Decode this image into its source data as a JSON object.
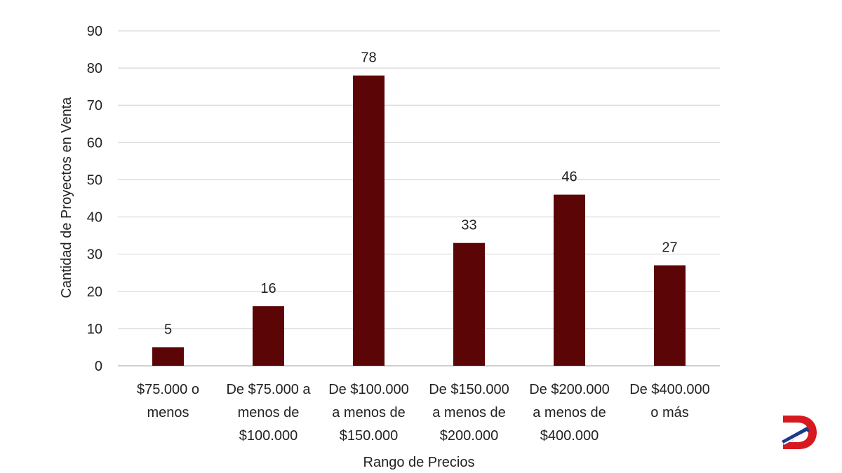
{
  "chart_data": {
    "type": "bar",
    "title": "",
    "xlabel": "Rango de Precios",
    "ylabel": "Cantidad de Proyectos en Venta",
    "ylim": [
      0,
      90
    ],
    "yticks": [
      0,
      10,
      20,
      30,
      40,
      50,
      60,
      70,
      80,
      90
    ],
    "grid": true,
    "legend": "none",
    "bar_color": "#5c0507",
    "categories": [
      [
        "$75.000 o",
        "menos"
      ],
      [
        "De $75.000 a",
        "menos de",
        "$100.000"
      ],
      [
        "De $100.000",
        "a menos de",
        "$150.000"
      ],
      [
        "De $150.000",
        "a menos de",
        "$200.000"
      ],
      [
        "De $200.000",
        "a menos de",
        "$400.000"
      ],
      [
        "De $400.000",
        "o más"
      ]
    ],
    "values": [
      5,
      16,
      78,
      33,
      46,
      27
    ],
    "data_labels": [
      "5",
      "16",
      "78",
      "33",
      "46",
      "27"
    ]
  },
  "logo": {
    "icon": "brand-d-logo-icon",
    "colors": {
      "primary": "#d71920",
      "secondary": "#1b3a8c"
    }
  }
}
